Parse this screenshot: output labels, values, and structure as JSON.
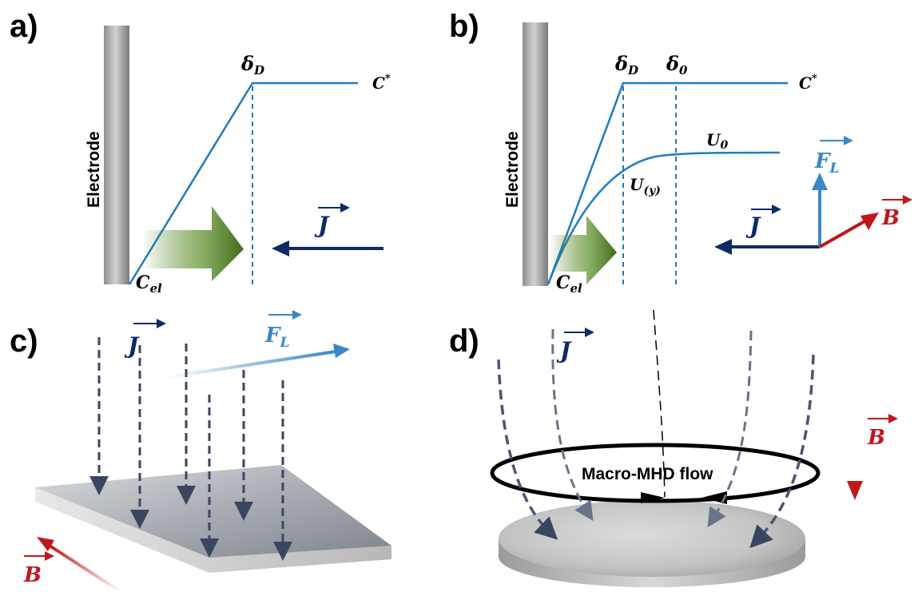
{
  "panels": {
    "a": {
      "label": "a)",
      "electrode": "Electrode",
      "delta_d": "δ",
      "delta_d_sub": "D",
      "c_star": "C",
      "c_star_sup": "*",
      "c_el": "C",
      "c_el_sub": "el",
      "j": "J"
    },
    "b": {
      "label": "b)",
      "electrode": "Electrode",
      "delta_d": "δ",
      "delta_d_sub": "D",
      "delta_0": "δ",
      "delta_0_sub": "0",
      "c_star": "C",
      "c_star_sup": "*",
      "u0": "U",
      "u0_sub": "0",
      "uy": "U",
      "uy_sub": "(y)",
      "c_el": "C",
      "c_el_sub": "el",
      "j": "J",
      "fl": "F",
      "fl_sub": "L",
      "b": "B"
    },
    "c": {
      "label": "c)",
      "j": "J",
      "fl": "F",
      "fl_sub": "L",
      "b": "B"
    },
    "d": {
      "label": "d)",
      "j": "J",
      "b": "B",
      "flow": "Macro-MHD flow"
    }
  },
  "colors": {
    "curve": "#1f7bc1",
    "current": "#0e2a66",
    "force": "#3a86c8",
    "field": "#c0161c",
    "diffusion_arrow": "#4a7a23",
    "dashed_current": "#3a4660"
  }
}
